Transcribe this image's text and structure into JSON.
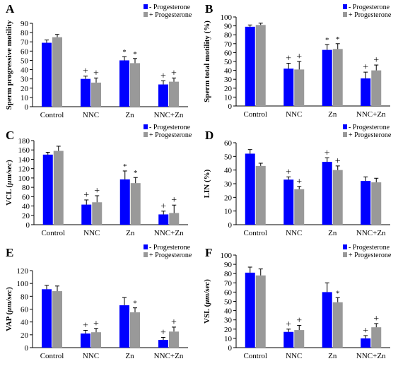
{
  "colors": {
    "minus": "#0000ff",
    "plus": "#999999",
    "axis": "#000000"
  },
  "chart_data": [
    {
      "panel": "A",
      "type": "bar",
      "ylabel": "Sperm progressive motility",
      "ylabel_italic_part": "",
      "ylim": [
        0,
        90
      ],
      "yticks": [
        0,
        10,
        20,
        30,
        40,
        50,
        60,
        70,
        80,
        90
      ],
      "categories": [
        "Control",
        "NNC",
        "Zn",
        "NNC+Zn"
      ],
      "series": [
        {
          "name": "- Progesterone",
          "values": [
            69,
            30,
            50,
            24
          ],
          "errors": [
            3,
            3,
            4,
            4
          ]
        },
        {
          "name": "+ Progesterone",
          "values": [
            75,
            26,
            47,
            27
          ],
          "errors": [
            3,
            5,
            5,
            4
          ]
        }
      ],
      "annotations": [
        [
          "+",
          "+"
        ],
        [
          "*",
          "*"
        ],
        [
          "+",
          "+"
        ]
      ],
      "grid": false,
      "legend": "top-right"
    },
    {
      "panel": "B",
      "type": "bar",
      "ylabel": "Sperm total motility (%)",
      "ylabel_italic_part": "",
      "ylim": [
        0,
        100
      ],
      "yticks": [
        0,
        10,
        20,
        30,
        40,
        50,
        60,
        70,
        80,
        90,
        100
      ],
      "categories": [
        "Control",
        "NNC",
        "Zn",
        "NNC+Zn"
      ],
      "series": [
        {
          "name": "- Progesterone",
          "values": [
            89,
            42,
            63,
            31
          ],
          "errors": [
            2,
            6,
            6,
            7
          ]
        },
        {
          "name": "+ Progesterone",
          "values": [
            91,
            41,
            64,
            40
          ],
          "errors": [
            2,
            9,
            6,
            6
          ]
        }
      ],
      "annotations": [
        [
          "+",
          "+"
        ],
        [
          "*",
          "*"
        ],
        [
          "+",
          "+"
        ]
      ],
      "grid": false,
      "legend": "top-right"
    },
    {
      "panel": "C",
      "type": "bar",
      "ylabel": "VCL (",
      "ylabel_italic_part": "µm/sec",
      "ylabel_suffix": ")",
      "ylim": [
        0,
        180
      ],
      "yticks": [
        0,
        20,
        40,
        60,
        80,
        100,
        120,
        140,
        160,
        180
      ],
      "categories": [
        "Control",
        "NNC",
        "Zn",
        "NNC+Zn"
      ],
      "series": [
        {
          "name": "- Progesterone",
          "values": [
            150,
            43,
            97,
            22
          ],
          "errors": [
            5,
            10,
            18,
            7
          ]
        },
        {
          "name": "+ Progesterone",
          "values": [
            158,
            48,
            89,
            25
          ],
          "errors": [
            10,
            14,
            12,
            17
          ]
        }
      ],
      "annotations": [
        [
          "+",
          "+"
        ],
        [
          "*",
          "*"
        ],
        [
          "+",
          "+"
        ]
      ],
      "grid": false,
      "legend": "top-right"
    },
    {
      "panel": "D",
      "type": "bar",
      "ylabel": "LIN (%)",
      "ylabel_italic_part": "",
      "ylim": [
        0,
        60
      ],
      "yticks": [
        0,
        10,
        20,
        30,
        40,
        50,
        60
      ],
      "categories": [
        "Control",
        "NNC",
        "Zn",
        "NNC+Zn"
      ],
      "series": [
        {
          "name": "- Progesterone",
          "values": [
            52,
            33,
            46,
            32
          ],
          "errors": [
            3,
            2,
            3,
            3
          ]
        },
        {
          "name": "+ Progesterone",
          "values": [
            43,
            26,
            40,
            31
          ],
          "errors": [
            2,
            2,
            3,
            3
          ]
        }
      ],
      "annotations": [
        [
          "+",
          "+"
        ],
        [
          "+",
          "+"
        ],
        [
          "",
          ""
        ]
      ],
      "grid": false,
      "legend": "top-right"
    },
    {
      "panel": "E",
      "type": "bar",
      "ylabel": "VAP (",
      "ylabel_italic_part": "µm/sec",
      "ylabel_suffix": ")",
      "ylim": [
        0,
        120
      ],
      "yticks": [
        0,
        20,
        40,
        60,
        80,
        100,
        120
      ],
      "categories": [
        "Control",
        "NNC",
        "Zn",
        "NNC+Zn"
      ],
      "series": [
        {
          "name": "- Progesterone",
          "values": [
            91,
            22,
            66,
            12
          ],
          "errors": [
            6,
            5,
            12,
            4
          ]
        },
        {
          "name": "+ Progesterone",
          "values": [
            88,
            24,
            55,
            25
          ],
          "errors": [
            8,
            6,
            7,
            7
          ]
        }
      ],
      "annotations": [
        [
          "+",
          "+"
        ],
        [
          "",
          "*"
        ],
        [
          "+",
          "+"
        ]
      ],
      "grid": false,
      "legend": "top-right"
    },
    {
      "panel": "F",
      "type": "bar",
      "ylabel": "VSL (",
      "ylabel_italic_part": "µm/sec",
      "ylabel_suffix": ")",
      "ylim": [
        0,
        100
      ],
      "yticks": [
        0,
        10,
        20,
        30,
        40,
        50,
        60,
        70,
        80,
        90,
        100
      ],
      "categories": [
        "Control",
        "NNC",
        "Zn",
        "NNC+Zn"
      ],
      "series": [
        {
          "name": "- Progesterone",
          "values": [
            81,
            17,
            60,
            10
          ],
          "errors": [
            6,
            3,
            10,
            3
          ]
        },
        {
          "name": "+ Progesterone",
          "values": [
            78,
            19,
            49,
            22
          ],
          "errors": [
            7,
            5,
            5,
            4
          ]
        }
      ],
      "annotations": [
        [
          "+",
          "+"
        ],
        [
          "",
          "*"
        ],
        [
          "+",
          "+"
        ]
      ],
      "grid": false,
      "legend": "top-right"
    }
  ]
}
